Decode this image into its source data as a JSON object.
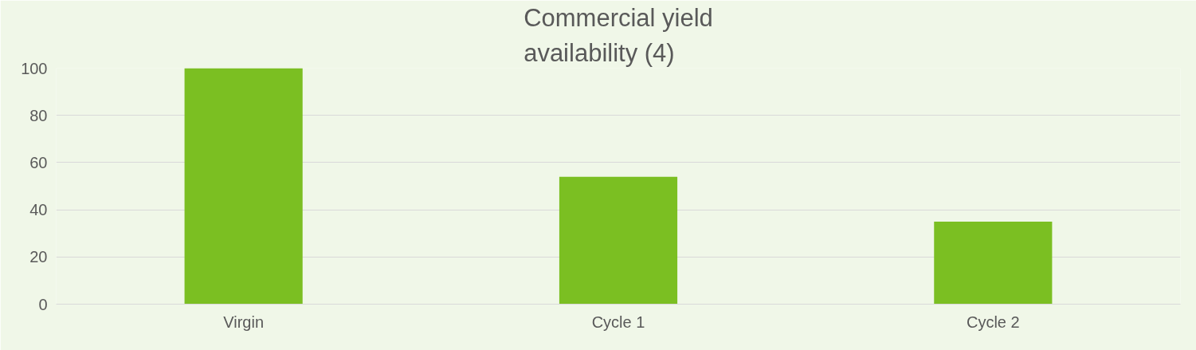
{
  "chart_data": {
    "type": "bar",
    "title": "Commercial yield availability (4)",
    "categories": [
      "Virgin",
      "Cycle 1",
      "Cycle 2"
    ],
    "values": [
      100,
      54,
      35
    ],
    "color": "#7bbf22",
    "ylim": [
      0,
      100
    ],
    "yticks": [
      0,
      20,
      40,
      60,
      80,
      100
    ],
    "grid": "y"
  }
}
